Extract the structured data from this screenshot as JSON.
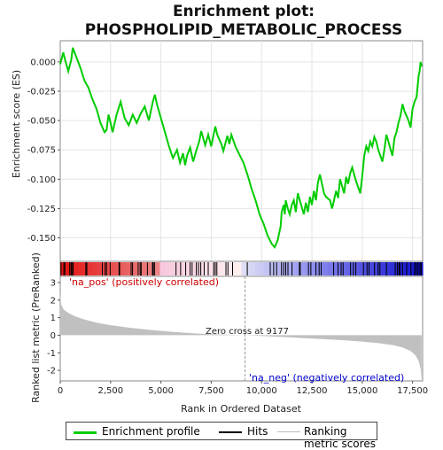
{
  "chart_data": {
    "type": "line",
    "title_line1": "Enrichment plot:",
    "title_line2": "PHOSPHOLIPID_METABOLIC_PROCESS",
    "top_panel": {
      "ylabel": "Enrichment score (ES)",
      "ylim": [
        -0.17,
        0.018
      ],
      "yticks": [
        0.0,
        -0.025,
        -0.05,
        -0.075,
        -0.1,
        -0.125,
        -0.15
      ],
      "ytick_labels": [
        "0.000",
        "-0.025",
        "-0.050",
        "-0.075",
        "-0.100",
        "-0.125",
        "-0.150"
      ],
      "series": [
        {
          "name": "Enrichment profile",
          "color": "#00cc00",
          "x": [
            0,
            150,
            250,
            400,
            550,
            620,
            800,
            1000,
            1200,
            1400,
            1600,
            1800,
            2000,
            2200,
            2300,
            2400,
            2500,
            2600,
            2800,
            3000,
            3200,
            3400,
            3600,
            3800,
            4000,
            4200,
            4400,
            4600,
            4700,
            4800,
            5000,
            5200,
            5400,
            5600,
            5800,
            5950,
            6100,
            6200,
            6300,
            6450,
            6600,
            6750,
            6900,
            7000,
            7100,
            7200,
            7350,
            7500,
            7700,
            7800,
            8000,
            8100,
            8300,
            8400,
            8500,
            8700,
            8900,
            9100,
            9300,
            9500,
            9700,
            9900,
            10100,
            10300,
            10500,
            10650,
            10800,
            10950,
            11000,
            11100,
            11150,
            11200,
            11300,
            11400,
            11500,
            11600,
            11700,
            11800,
            11900,
            12000,
            12100,
            12200,
            12300,
            12400,
            12500,
            12600,
            12700,
            12800,
            12900,
            13000,
            13100,
            13200,
            13400,
            13500,
            13600,
            13700,
            13800,
            13900,
            14000,
            14100,
            14200,
            14300,
            14400,
            14500,
            14600,
            14700,
            14800,
            14900,
            15000,
            15100,
            15200,
            15300,
            15400,
            15500,
            15600,
            15700,
            15800,
            15900,
            16000,
            16100,
            16200,
            16300,
            16400,
            16500,
            16600,
            16700,
            16800,
            16900,
            17000,
            17100,
            17200,
            17300,
            17400,
            17500,
            17600,
            17700,
            17800,
            17850,
            17900,
            17950
          ],
          "y": [
            -0.002,
            0.008,
            0.001,
            -0.008,
            0.002,
            0.012,
            0.004,
            -0.005,
            -0.016,
            -0.022,
            -0.032,
            -0.04,
            -0.052,
            -0.06,
            -0.058,
            -0.045,
            -0.052,
            -0.06,
            -0.045,
            -0.034,
            -0.048,
            -0.054,
            -0.045,
            -0.052,
            -0.044,
            -0.038,
            -0.05,
            -0.034,
            -0.028,
            -0.036,
            -0.048,
            -0.06,
            -0.072,
            -0.082,
            -0.075,
            -0.086,
            -0.078,
            -0.088,
            -0.08,
            -0.073,
            -0.085,
            -0.076,
            -0.068,
            -0.059,
            -0.065,
            -0.071,
            -0.062,
            -0.072,
            -0.055,
            -0.062,
            -0.07,
            -0.076,
            -0.063,
            -0.07,
            -0.062,
            -0.072,
            -0.079,
            -0.086,
            -0.096,
            -0.108,
            -0.118,
            -0.13,
            -0.138,
            -0.148,
            -0.155,
            -0.158,
            -0.152,
            -0.14,
            -0.128,
            -0.122,
            -0.13,
            -0.118,
            -0.125,
            -0.13,
            -0.122,
            -0.118,
            -0.128,
            -0.112,
            -0.118,
            -0.124,
            -0.13,
            -0.12,
            -0.128,
            -0.115,
            -0.122,
            -0.11,
            -0.118,
            -0.103,
            -0.096,
            -0.104,
            -0.112,
            -0.115,
            -0.118,
            -0.125,
            -0.118,
            -0.11,
            -0.116,
            -0.1,
            -0.106,
            -0.112,
            -0.098,
            -0.104,
            -0.095,
            -0.09,
            -0.096,
            -0.102,
            -0.107,
            -0.112,
            -0.098,
            -0.08,
            -0.072,
            -0.076,
            -0.068,
            -0.072,
            -0.064,
            -0.068,
            -0.075,
            -0.08,
            -0.085,
            -0.075,
            -0.062,
            -0.068,
            -0.074,
            -0.08,
            -0.065,
            -0.06,
            -0.052,
            -0.046,
            -0.036,
            -0.042,
            -0.046,
            -0.05,
            -0.056,
            -0.04,
            -0.034,
            -0.03,
            -0.012,
            -0.008,
            0.0,
            -0.004
          ]
        }
      ]
    },
    "hit_positions": [
      40,
      180,
      230,
      470,
      540,
      580,
      640,
      1270,
      1320,
      2090,
      2230,
      2300,
      2480,
      2920,
      2950,
      3520,
      3590,
      3870,
      3970,
      4020,
      4330,
      4580,
      4620,
      4680,
      5750,
      5980,
      6230,
      6450,
      6550,
      6760,
      6870,
      6980,
      7150,
      7350,
      7620,
      7700,
      7780,
      8230,
      8330,
      8560,
      9290,
      10430,
      10600,
      10750,
      10990,
      11100,
      11200,
      11310,
      11510,
      11880,
      11920,
      12330,
      12450,
      12700,
      12860,
      12960,
      13580,
      13800,
      13950,
      14050,
      14420,
      14560,
      14680,
      15060,
      15240,
      15340,
      15610,
      15790,
      15880,
      16200,
      16640,
      16750,
      16830,
      16870,
      17000,
      17210,
      17420,
      17600,
      17680,
      17770,
      17870,
      17930
    ],
    "bottom_panel": {
      "ylabel": "Ranked list metric (PreRanked)",
      "xlabel": "Rank in Ordered Dataset",
      "xlim": [
        0,
        18000
      ],
      "ylim": [
        -2.6,
        3.35
      ],
      "xticks": [
        0,
        2500,
        5000,
        7500,
        10000,
        12500,
        15000,
        17500
      ],
      "xtick_labels": [
        "0",
        "2,500",
        "5,000",
        "7,500",
        "10,000",
        "12,500",
        "15,000",
        "17,500"
      ],
      "yticks": [
        3,
        2,
        1,
        0,
        -1,
        -2
      ],
      "ytick_labels": [
        "3",
        "2",
        "1",
        "0",
        "-1",
        "-2"
      ],
      "metric_x": [
        0,
        50,
        150,
        300,
        500,
        800,
        1200,
        1800,
        2500,
        3500,
        4500,
        5500,
        6500,
        7500,
        8500,
        9177,
        10000,
        11000,
        12000,
        13000,
        14000,
        15000,
        15800,
        16500,
        17000,
        17400,
        17650,
        17800,
        17900,
        17950
      ],
      "metric_y": [
        2.45,
        1.75,
        1.5,
        1.35,
        1.2,
        1.05,
        0.9,
        0.72,
        0.57,
        0.42,
        0.3,
        0.2,
        0.12,
        0.06,
        0.02,
        0.0,
        -0.04,
        -0.1,
        -0.16,
        -0.22,
        -0.28,
        -0.36,
        -0.45,
        -0.56,
        -0.7,
        -0.9,
        -1.15,
        -1.45,
        -1.9,
        -2.55
      ],
      "pos_label": "'na_pos' (positively correlated)",
      "neg_label": "'na_neg' (negatively correlated)",
      "zero_cross_label": "Zero cross at 9177",
      "zero_cross": 9177,
      "pos_color": "#cc0000",
      "neg_color": "#0000cc"
    },
    "legend": [
      "Enrichment profile",
      "Hits",
      "Ranking metric scores"
    ]
  }
}
